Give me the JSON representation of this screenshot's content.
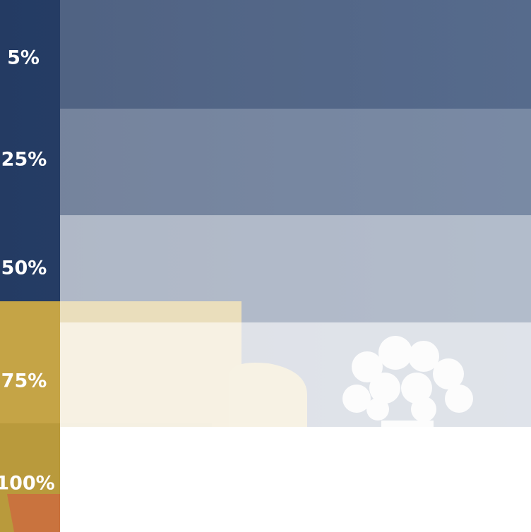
{
  "labels": [
    "5%",
    "25%",
    "50%",
    "75%",
    "100%"
  ]
}
